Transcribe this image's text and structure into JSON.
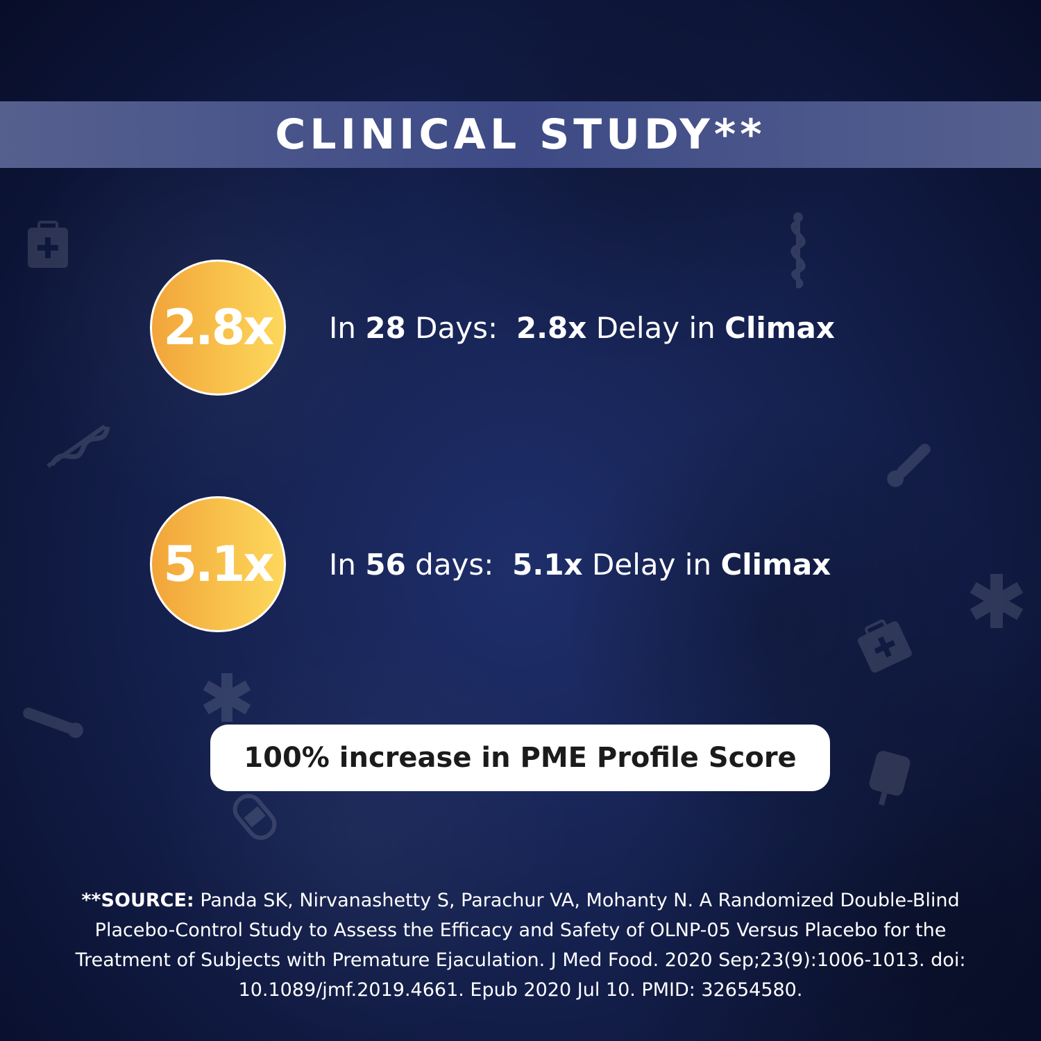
{
  "header": {
    "title": "CLINICAL STUDY**"
  },
  "stats": [
    {
      "badge": "2.8x",
      "prefix": "In ",
      "days": "28",
      "days_word": " Days:  ",
      "multiplier": "2.8x",
      "middle": " Delay in ",
      "emphasis": "Climax"
    },
    {
      "badge": "5.1x",
      "prefix": "In ",
      "days": "56",
      "days_word": " days:  ",
      "multiplier": "5.1x",
      "middle": " Delay in ",
      "emphasis": "Climax"
    }
  ],
  "highlight": {
    "text": "100% increase in PME Profile Score"
  },
  "source": {
    "label": "**SOURCE:",
    "text": " Panda SK, Nirvanashetty S, Parachur VA, Mohanty N. A Randomized Double-Blind Placebo-Control Study to Assess the Efficacy and Safety of OLNP-05 Versus Placebo for the Treatment of Subjects with Premature Ejaculation. J Med Food. 2020 Sep;23(9):1006-1013. doi: 10.1089/jmf.2019.4661. Epub 2020 Jul 10. PMID: 32654580."
  },
  "colors": {
    "background": "#15214f",
    "banner": "#48558a",
    "badge_start": "#f2a43a",
    "badge_end": "#fdd75c",
    "pill": "#ffffff"
  },
  "decorative_icons": [
    "first-aid-kit-icon",
    "caduceus-icon",
    "thermometer-icon",
    "asterisk-icon",
    "iv-bag-icon",
    "bandage-icon"
  ]
}
